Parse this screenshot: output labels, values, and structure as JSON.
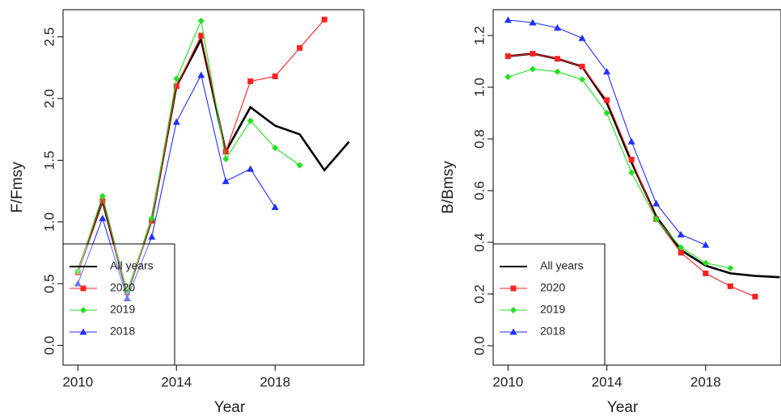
{
  "chart_data": [
    {
      "type": "line",
      "x_label": "Year",
      "y_label": "F/Fmsy",
      "xlim": [
        2009.4,
        2021.6
      ],
      "xticks": [
        2010,
        2014,
        2018
      ],
      "ylim": [
        -0.16,
        2.72
      ],
      "yticks": [
        {
          "value": 0,
          "label": "0.0"
        },
        0.5,
        {
          "value": 1,
          "label": "1.0"
        },
        1.5,
        {
          "value": 2,
          "label": "2.0"
        },
        2.5
      ],
      "legend": "bottom-left",
      "series": [
        {
          "name": "All years",
          "color": "#000000",
          "marker": "none",
          "x": [
            2010,
            2011,
            2012,
            2013,
            2014,
            2015,
            2016,
            2017,
            2018,
            2019,
            2020,
            2021
          ],
          "values": [
            0.6,
            1.17,
            0.42,
            1.02,
            2.1,
            2.48,
            1.57,
            1.93,
            1.78,
            1.71,
            1.42,
            1.65
          ]
        },
        {
          "name": "2020",
          "color": "#ff2020",
          "marker": "square",
          "x": [
            2010,
            2011,
            2012,
            2013,
            2014,
            2015,
            2016,
            2017,
            2018,
            2019,
            2020
          ],
          "values": [
            0.59,
            1.17,
            0.43,
            1.01,
            2.1,
            2.51,
            1.57,
            2.14,
            2.18,
            2.41,
            2.64
          ]
        },
        {
          "name": "2019",
          "color": "#20e020",
          "marker": "diamond",
          "x": [
            2010,
            2011,
            2012,
            2013,
            2014,
            2015,
            2016,
            2017,
            2018,
            2019
          ],
          "values": [
            0.6,
            1.21,
            0.44,
            1.03,
            2.16,
            2.63,
            1.51,
            1.82,
            1.6,
            1.46
          ]
        },
        {
          "name": "2018",
          "color": "#2030ff",
          "marker": "triangle",
          "x": [
            2010,
            2011,
            2012,
            2013,
            2014,
            2015,
            2016,
            2017,
            2018
          ],
          "values": [
            0.5,
            1.03,
            0.38,
            0.88,
            1.81,
            2.19,
            1.33,
            1.43,
            1.12
          ]
        }
      ]
    },
    {
      "type": "line",
      "x_label": "Year",
      "y_label": "B/Bmsy",
      "xlim": [
        2009.4,
        2021.05
      ],
      "xticks": [
        2010,
        2014,
        2018
      ],
      "ylim": [
        -0.075,
        1.3
      ],
      "yticks": [
        {
          "value": 0,
          "label": "0.0"
        },
        0.2,
        0.4,
        0.6,
        0.8,
        {
          "value": 1,
          "label": "1.0"
        },
        1.2
      ],
      "legend": "bottom-left",
      "series": [
        {
          "name": "All years",
          "color": "#000000",
          "marker": "none",
          "x": [
            2010,
            2011,
            2012,
            2013,
            2014,
            2015,
            2016,
            2017,
            2018,
            2019,
            2020,
            2021
          ],
          "values": [
            1.12,
            1.13,
            1.11,
            1.08,
            0.94,
            0.71,
            0.5,
            0.37,
            0.31,
            0.28,
            0.27,
            0.265
          ]
        },
        {
          "name": "2020",
          "color": "#ff2020",
          "marker": "square",
          "x": [
            2010,
            2011,
            2012,
            2013,
            2014,
            2015,
            2016,
            2017,
            2018,
            2019,
            2020
          ],
          "values": [
            1.12,
            1.13,
            1.11,
            1.08,
            0.95,
            0.72,
            0.49,
            0.36,
            0.28,
            0.23,
            0.19
          ]
        },
        {
          "name": "2019",
          "color": "#20e020",
          "marker": "diamond",
          "x": [
            2010,
            2011,
            2012,
            2013,
            2014,
            2015,
            2016,
            2017,
            2018,
            2019
          ],
          "values": [
            1.04,
            1.07,
            1.06,
            1.03,
            0.9,
            0.67,
            0.49,
            0.38,
            0.32,
            0.3
          ]
        },
        {
          "name": "2018",
          "color": "#2030ff",
          "marker": "triangle",
          "x": [
            2010,
            2011,
            2012,
            2013,
            2014,
            2015,
            2016,
            2017,
            2018
          ],
          "values": [
            1.26,
            1.25,
            1.23,
            1.19,
            1.06,
            0.79,
            0.55,
            0.43,
            0.39
          ]
        }
      ]
    }
  ]
}
